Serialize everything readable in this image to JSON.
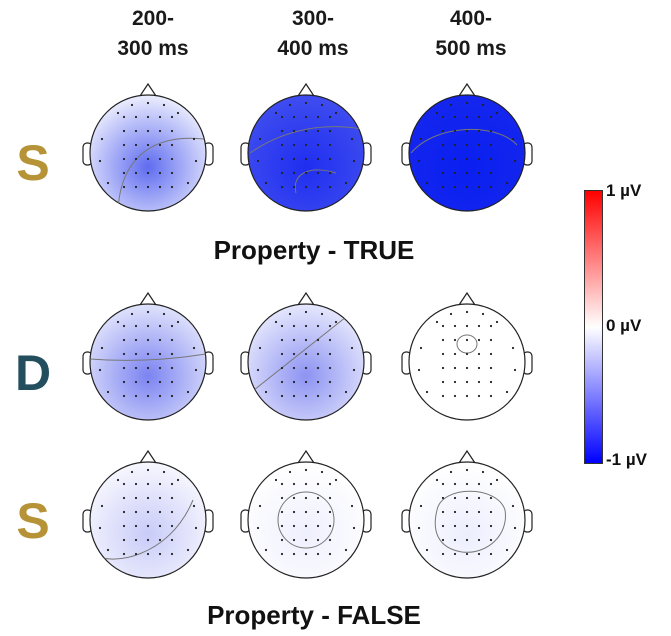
{
  "columns": [
    "200-\n300 ms",
    "300-\n400 ms",
    "400-\n500 ms"
  ],
  "conditions": {
    "true_title": "Property - TRUE",
    "false_title": "Property - FALSE"
  },
  "rows": [
    {
      "label": "S",
      "label_color": "#b59336",
      "maps": [
        {
          "center_fill": "#5f6cf0",
          "edge_fill": "#e8eafd",
          "contour": "arc-upper"
        },
        {
          "center_fill": "#1f2ef0",
          "edge_fill": "#3e4cef",
          "contour": "arc-upper-inner"
        },
        {
          "center_fill": "#0a1ff0",
          "edge_fill": "#1426ee",
          "contour": "arc-center"
        }
      ]
    },
    {
      "label": "D",
      "label_color": "#224e5e",
      "maps": [
        {
          "center_fill": "#7b83f1",
          "edge_fill": "#dde0fb",
          "contour": "line-horizontal"
        },
        {
          "center_fill": "#8d93f2",
          "edge_fill": "#e3e5fc",
          "contour": "line-diagonal"
        },
        {
          "center_fill": "#ffffff",
          "edge_fill": "#ffffff",
          "contour": "small-circle"
        }
      ]
    },
    {
      "label": "S",
      "label_color": "#b59336",
      "maps": [
        {
          "center_fill": "#c8cbf8",
          "edge_fill": "#f6f6fe",
          "contour": "large-arc"
        },
        {
          "center_fill": "#eeeffd",
          "edge_fill": "#ffffff",
          "contour": "center-circle"
        },
        {
          "center_fill": "#eceefd",
          "edge_fill": "#ffffff",
          "contour": "center-blob"
        }
      ]
    }
  ],
  "colorbar": {
    "max_label": "1 µV",
    "mid_label": "0 µV",
    "min_label": "-1 µV",
    "max_color": "#ff0000",
    "mid_color": "#ffffff",
    "min_color": "#0000ff"
  }
}
